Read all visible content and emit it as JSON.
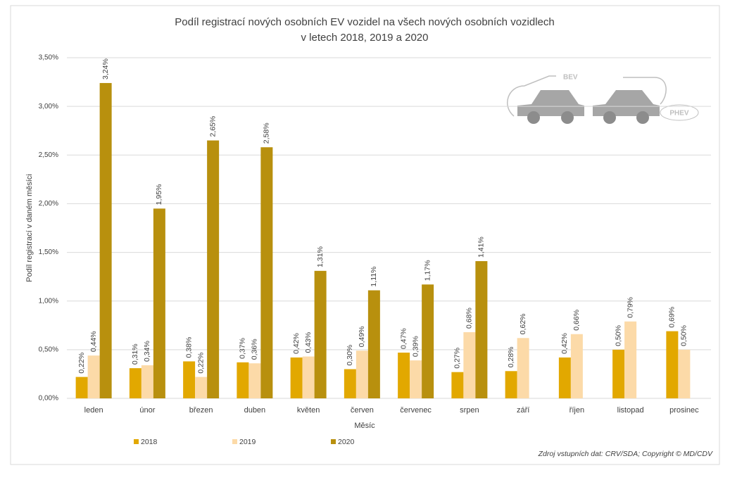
{
  "chart_data": {
    "type": "bar",
    "title": [
      "Podíl registrací nových osobních EV vozidel na všech nových osobních vozidlech",
      "v letech 2018, 2019 a 2020"
    ],
    "x_label": "Měsíc",
    "y_label": "Podíl registrací v daném měsíci",
    "source": "Zdroj vstupních dat: CRV/SDA; Copyright © MD/CDV",
    "annotations": [
      "BEV",
      "PHEV"
    ],
    "categories": [
      "leden",
      "únor",
      "březen",
      "duben",
      "květen",
      "červen",
      "červenec",
      "srpen",
      "září",
      "říjen",
      "listopad",
      "prosinec"
    ],
    "series": [
      {
        "name": "2018",
        "color": "#e2a800",
        "values": [
          0.22,
          0.31,
          0.38,
          0.37,
          0.42,
          0.3,
          0.47,
          0.27,
          0.28,
          0.42,
          0.5,
          0.69
        ],
        "value_labels": [
          "0,22%",
          "0,31%",
          "0,38%",
          "0,37%",
          "0,42%",
          "0,30%",
          "0,47%",
          "0,27%",
          "0,28%",
          "0,42%",
          "0,50%",
          "0,69%"
        ]
      },
      {
        "name": "2019",
        "color": "#fcdaa8",
        "values": [
          0.44,
          0.34,
          0.22,
          0.36,
          0.43,
          0.49,
          0.39,
          0.68,
          0.62,
          0.66,
          0.79,
          0.5
        ],
        "value_labels": [
          "0,44%",
          "0,34%",
          "0,22%",
          "0,36%",
          "0,43%",
          "0,49%",
          "0,39%",
          "0,68%",
          "0,62%",
          "0,66%",
          "0,79%",
          "0,50%"
        ]
      },
      {
        "name": "2020",
        "color": "#b8900e",
        "values": [
          3.24,
          1.95,
          2.65,
          2.58,
          1.31,
          1.11,
          1.17,
          1.41,
          null,
          null,
          null,
          null
        ],
        "value_labels": [
          "3,24%",
          "1,95%",
          "2,65%",
          "2,58%",
          "1,31%",
          "1,11%",
          "1,17%",
          "1,41%",
          null,
          null,
          null,
          null
        ]
      }
    ],
    "ylim": [
      0,
      3.5
    ],
    "yticks": [
      {
        "value": 0,
        "label": "0,00%"
      },
      {
        "value": 0.5,
        "label": "0,50%"
      },
      {
        "value": 1,
        "label": "1,00%"
      },
      {
        "value": 1.5,
        "label": "1,50%"
      },
      {
        "value": 2,
        "label": "2,00%"
      },
      {
        "value": 2.5,
        "label": "2,50%"
      },
      {
        "value": 3,
        "label": "3,00%"
      },
      {
        "value": 3.5,
        "label": "3,50%"
      }
    ],
    "grid": true,
    "legend": "bottom"
  }
}
